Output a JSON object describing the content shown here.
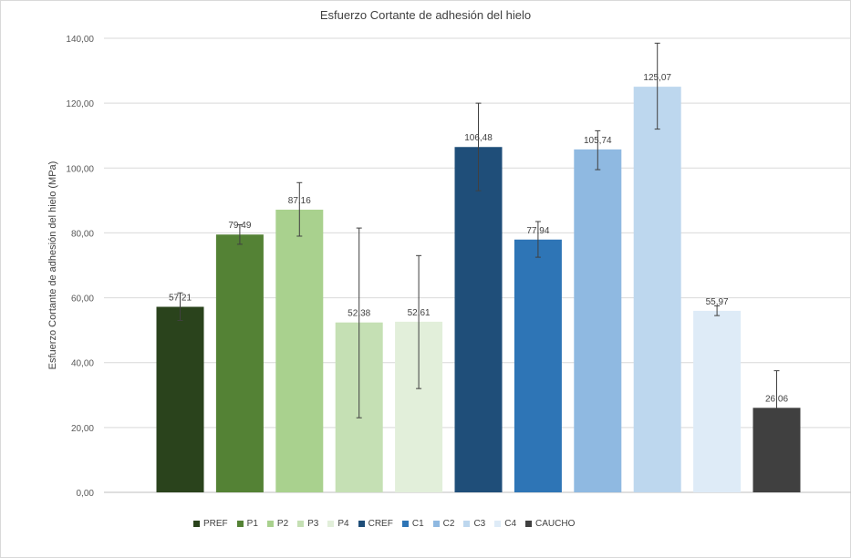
{
  "chart_data": {
    "type": "bar",
    "title": "Esfuerzo Cortante de adhesión del hielo",
    "xlabel": "",
    "ylabel": "Esfuerzo Cortante de adhesión del hielo (MPa)",
    "ylim": [
      0,
      140
    ],
    "yticks": [
      0,
      20,
      40,
      60,
      80,
      100,
      120,
      140
    ],
    "ytick_labels": [
      "0,00",
      "20,00",
      "40,00",
      "60,00",
      "80,00",
      "100,00",
      "120,00",
      "140,00"
    ],
    "grid": true,
    "legend_position": "bottom",
    "categories": [
      "PREF",
      "P1",
      "P2",
      "P3",
      "P4",
      "CREF",
      "C1",
      "C2",
      "C3",
      "C4",
      "CAUCHO"
    ],
    "values": [
      57.21,
      79.49,
      87.16,
      52.38,
      52.61,
      106.48,
      77.94,
      105.74,
      125.07,
      55.97,
      26.06
    ],
    "value_labels": [
      "57,21",
      "79,49",
      "87,16",
      "52,38",
      "52,61",
      "106,48",
      "77,94",
      "105,74",
      "125,07",
      "55,97",
      "26,06"
    ],
    "error_low": [
      53.0,
      76.5,
      79.0,
      23.0,
      32.0,
      93.0,
      72.5,
      99.5,
      112.0,
      54.5,
      14.5
    ],
    "error_high": [
      61.5,
      82.5,
      95.5,
      81.5,
      73.0,
      120.0,
      83.5,
      111.5,
      138.5,
      57.5,
      37.5
    ],
    "colors": [
      "#2a431c",
      "#548235",
      "#a9d18e",
      "#c5e0b4",
      "#e2efda",
      "#1f4e79",
      "#2e75b6",
      "#8fb9e1",
      "#bdd7ee",
      "#deebf7",
      "#404040"
    ]
  }
}
